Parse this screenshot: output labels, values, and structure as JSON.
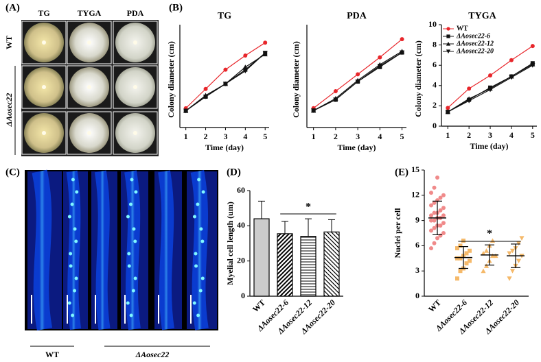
{
  "figure": {
    "panel_labels": [
      "(A)",
      "(B)",
      "(C)",
      "(D)",
      "(E)"
    ],
    "plate_columns": [
      "TG",
      "TYGA",
      "PDA"
    ],
    "plate_rows": [
      "WT",
      "ΔAosec22"
    ],
    "hyphae_groups": [
      "WT",
      "ΔAosec22"
    ]
  },
  "chart_data": [
    {
      "type": "line",
      "title": "TG",
      "x": [
        1,
        2,
        3,
        4,
        5
      ],
      "xlim": [
        0.7,
        5.2
      ],
      "xticks": [
        1,
        2,
        3,
        4,
        5
      ],
      "ylim": [
        0,
        8
      ],
      "xlabel": "Time (day)",
      "ylabel": "Colony diameter (cm)",
      "series": [
        {
          "color": "#e8262b",
          "marker": "circle",
          "values": [
            1.5,
            3.0,
            4.5,
            5.6,
            6.6
          ]
        },
        {
          "color": "#111111",
          "marker": "square",
          "values": [
            1.3,
            2.4,
            3.4,
            4.5,
            5.8
          ]
        },
        {
          "color": "#111111",
          "marker": "triangle-up",
          "values": [
            1.3,
            2.5,
            3.4,
            4.7,
            5.7
          ]
        },
        {
          "color": "#111111",
          "marker": "triangle-down",
          "values": [
            1.3,
            2.4,
            3.4,
            4.4,
            5.8
          ]
        }
      ]
    },
    {
      "type": "line",
      "title": "PDA",
      "x": [
        1,
        2,
        3,
        4,
        5
      ],
      "xlim": [
        0.7,
        5.2
      ],
      "xticks": [
        1,
        2,
        3,
        4,
        5
      ],
      "ylim": [
        0,
        8.5
      ],
      "xlabel": "Time (day)",
      "ylabel": "Colony diameter (cm)",
      "series": [
        {
          "color": "#e8262b",
          "marker": "circle",
          "values": [
            1.6,
            3.0,
            4.4,
            5.8,
            7.3
          ]
        },
        {
          "color": "#111111",
          "marker": "square",
          "values": [
            1.4,
            2.3,
            3.8,
            5.0,
            6.2
          ]
        },
        {
          "color": "#111111",
          "marker": "triangle-up",
          "values": [
            1.4,
            2.4,
            3.9,
            5.2,
            6.3
          ]
        },
        {
          "color": "#111111",
          "marker": "triangle-down",
          "values": [
            1.4,
            2.3,
            3.8,
            5.1,
            6.2
          ]
        }
      ]
    },
    {
      "type": "line",
      "title": "TYGA",
      "x": [
        1,
        2,
        3,
        4,
        5
      ],
      "xlim": [
        0.7,
        5.2
      ],
      "xticks": [
        1,
        2,
        3,
        4,
        5
      ],
      "ylim": [
        0,
        10
      ],
      "yticks": [
        0,
        2,
        4,
        6,
        8,
        10
      ],
      "xlabel": "Time (day)",
      "ylabel": "Colony diameter (cm)",
      "legend": "upper left",
      "series": [
        {
          "name": "WT",
          "color": "#e8262b",
          "marker": "circle",
          "values": [
            1.8,
            3.7,
            5.0,
            6.5,
            7.9
          ]
        },
        {
          "name": "ΔAosec22-6",
          "color": "#111111",
          "marker": "square",
          "values": [
            1.4,
            2.6,
            3.8,
            4.9,
            6.2
          ]
        },
        {
          "name": "ΔAosec22-12",
          "color": "#111111",
          "marker": "triangle-up",
          "values": [
            1.4,
            2.7,
            3.7,
            4.9,
            6.1
          ]
        },
        {
          "name": "ΔAosec22-20",
          "color": "#111111",
          "marker": "triangle-down",
          "values": [
            1.4,
            2.5,
            3.6,
            4.8,
            6.0
          ]
        }
      ]
    },
    {
      "type": "bar",
      "categories": [
        "WT",
        "ΔAosec22-6",
        "ΔAosec22-12",
        "ΔAosec22-20"
      ],
      "values": [
        44,
        35.5,
        34,
        36.5
      ],
      "errors": [
        10,
        7,
        10,
        7
      ],
      "patterns": [
        "solid",
        "diagonal",
        "horizontal",
        "back-diagonal"
      ],
      "color": "#cccccc",
      "ylim": [
        0,
        60
      ],
      "yticks": [
        0,
        20,
        40,
        60
      ],
      "ylabel": "Myelial cell length (um)",
      "annotation": "*"
    },
    {
      "type": "dot",
      "categories": [
        "WT",
        "ΔAosec22-6",
        "ΔAosec22-12",
        "ΔAosec22-20"
      ],
      "colors": [
        "#f08a8a",
        "#f5b96a",
        "#f5b96a",
        "#f5b96a"
      ],
      "markers": [
        "circle",
        "square",
        "triangle-up",
        "triangle-down"
      ],
      "means": [
        9.3,
        4.6,
        4.9,
        4.8
      ],
      "sds": [
        2.0,
        1.3,
        1.2,
        1.4
      ],
      "points": [
        [
          5.7,
          6.3,
          6.9,
          7.2,
          7.5,
          7.8,
          8.1,
          8.4,
          8.4,
          8.7,
          9,
          9,
          9.3,
          9.3,
          9.6,
          9.6,
          9.9,
          9.9,
          10.2,
          10.5,
          10.8,
          11.1,
          11.4,
          11.7,
          12,
          12.3,
          12.9,
          14.1
        ],
        [
          2.1,
          3,
          3.3,
          3.9,
          4.2,
          4.5,
          4.5,
          4.8,
          5.1,
          5.4,
          5.7,
          6,
          6.6
        ],
        [
          3,
          3.6,
          4.2,
          4.8,
          4.8,
          5.1,
          5.4,
          6,
          6.6
        ],
        [
          2.1,
          3,
          3.6,
          4.2,
          4.8,
          5.1,
          5.4,
          5.7,
          6.3,
          6.9
        ]
      ],
      "ylim": [
        0,
        15
      ],
      "yticks": [
        0,
        3,
        6,
        9,
        12,
        15
      ],
      "ylabel": "Nuclei per cell",
      "annotation": "*"
    }
  ]
}
